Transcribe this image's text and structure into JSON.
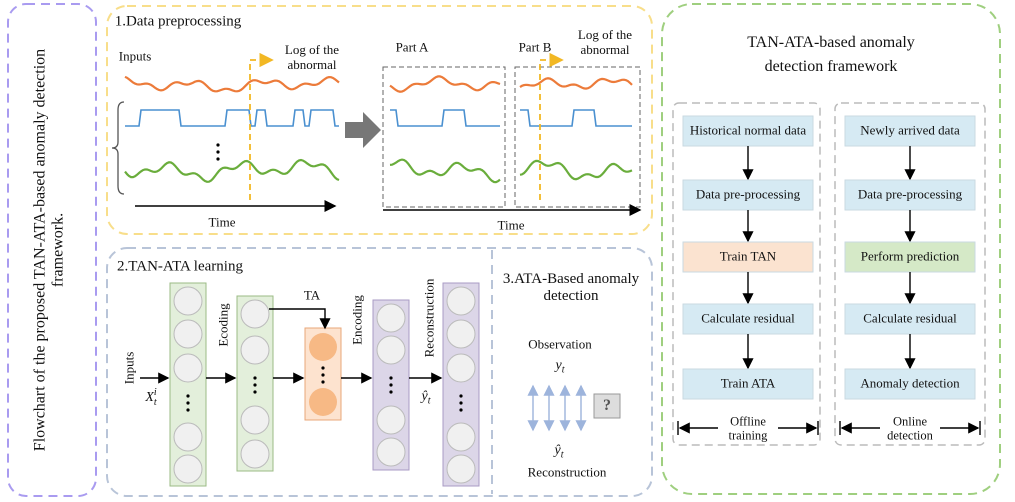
{
  "side_title": "Flowchart of the proposed TAN-ATA-based anomaly detection framework.",
  "preprocessing": {
    "title": "1.Data preprocessing",
    "inputs": "Inputs",
    "log_left": "Log of the abnormal",
    "time_left": "Time",
    "part_a": "Part A",
    "part_b": "Part B",
    "log_right": "Log of the abnormal",
    "time_right": "Time"
  },
  "learning": {
    "title": "2.TAN-ATA learning",
    "inputs": "Inputs",
    "input_symbol": {
      "base": "X",
      "sub": "t",
      "sup": "i"
    },
    "ecoding": "Ecoding",
    "ta": "TA",
    "encoding": "Encoding",
    "reconstruction": "Reconstruction",
    "output_symbol": {
      "base": "ŷ",
      "sub": "t"
    }
  },
  "detection": {
    "title": "3.ATA-Based anomaly detection",
    "observation": "Observation",
    "observation_symbol": {
      "base": "y",
      "sub": "t"
    },
    "reconstruction_symbol": {
      "base": "ŷ",
      "sub": "t"
    },
    "reconstruction": "Reconstruction",
    "unknown": "?"
  },
  "framework": {
    "title": "TAN-ATA-based anomaly detection framework",
    "offline": {
      "steps": [
        "Historical normal data",
        "Data pre-processing",
        "Train TAN",
        "Calculate residual",
        "Train ATA"
      ],
      "label": "Offline training"
    },
    "online": {
      "steps": [
        "Newly arrived data",
        "Data pre-processing",
        "Perform prediction",
        "Calculate residual",
        "Anomaly detection"
      ],
      "label": "Online detection"
    }
  }
}
